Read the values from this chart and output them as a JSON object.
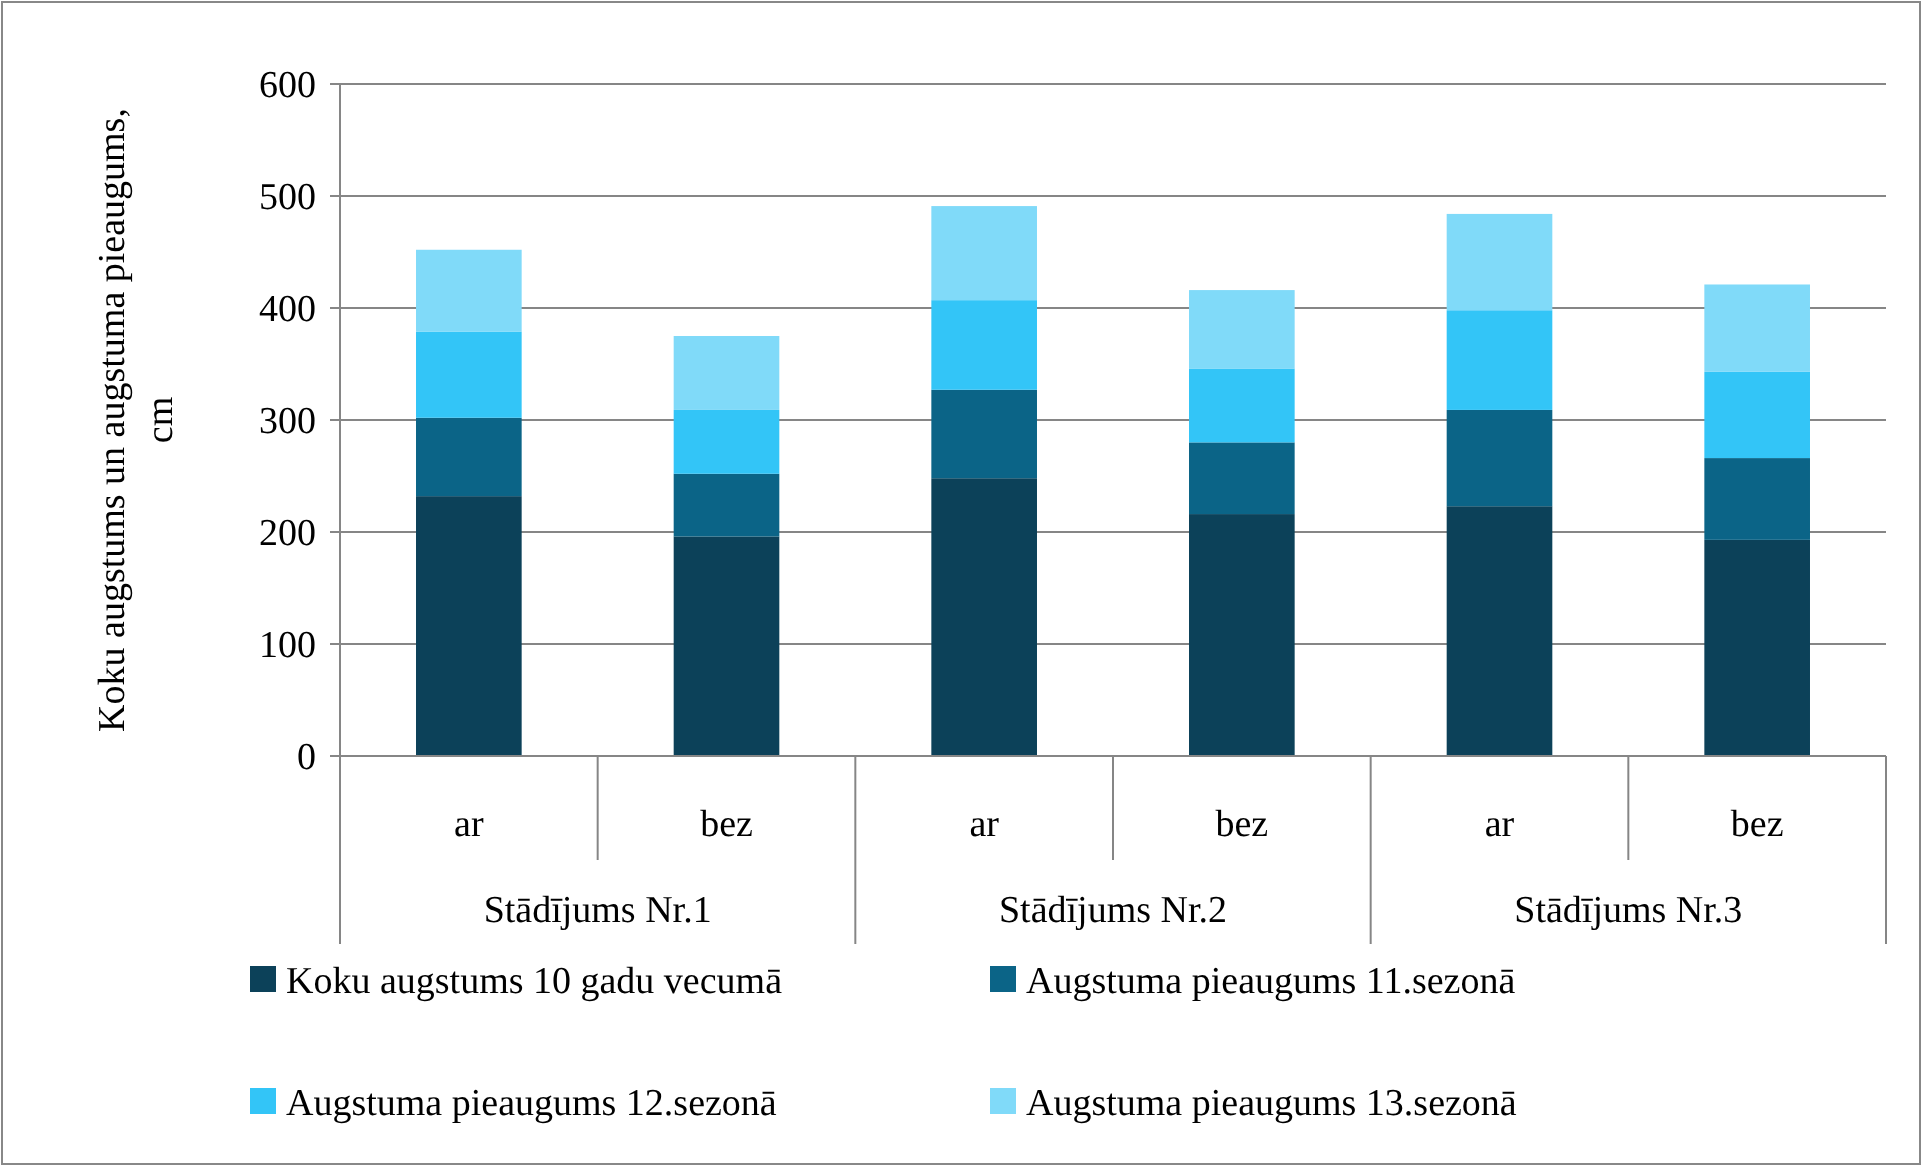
{
  "chart_data": {
    "type": "bar",
    "stacked": true,
    "ylabel": "Koku augstums un augstuma pieaugums, cm",
    "categories": [
      "ar",
      "bez",
      "ar",
      "bez",
      "ar",
      "bez"
    ],
    "annotations": [
      "Stādījums Nr.1",
      "Stādījums Nr.2",
      "Stādījums Nr.3"
    ],
    "series": [
      {
        "name": "Koku augstums 10 gadu vecumā",
        "color": "#0c4159",
        "values": [
          232,
          196,
          248,
          216,
          223,
          193
        ]
      },
      {
        "name": "Augstuma pieaugums 11.sezonā",
        "color": "#0b6487",
        "values": [
          70,
          56,
          79,
          64,
          86,
          73
        ]
      },
      {
        "name": "Augstuma pieaugums 12.sezonā",
        "color": "#33c5f7",
        "values": [
          77,
          57,
          80,
          66,
          89,
          77
        ]
      },
      {
        "name": "Augstuma pieaugums 13.sezonā",
        "color": "#80daf9",
        "values": [
          73,
          66,
          84,
          70,
          86,
          78
        ]
      }
    ],
    "ylim": [
      0,
      600
    ],
    "yticks": [
      0,
      100,
      200,
      300,
      400,
      500,
      600
    ],
    "grid": "y",
    "legend": "bottom"
  }
}
